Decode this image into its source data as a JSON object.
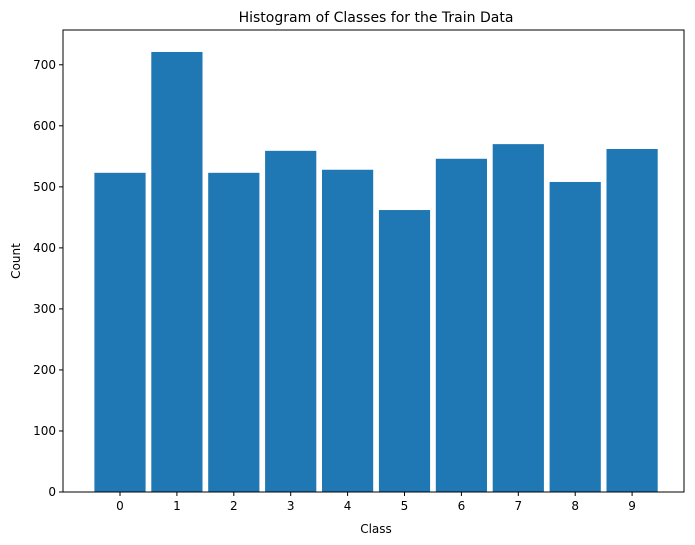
{
  "chart_data": {
    "type": "bar",
    "title": "Histogram of Classes for the Train Data",
    "xlabel": "Class",
    "ylabel": "Count",
    "categories": [
      "0",
      "1",
      "2",
      "3",
      "4",
      "5",
      "6",
      "7",
      "8",
      "9"
    ],
    "values": [
      523,
      721,
      523,
      559,
      528,
      462,
      546,
      570,
      508,
      562
    ],
    "ylim": [
      0,
      757
    ],
    "yticks": [
      0,
      100,
      200,
      300,
      400,
      500,
      600,
      700
    ],
    "bar_color": "#1f77b4",
    "grid": false
  }
}
